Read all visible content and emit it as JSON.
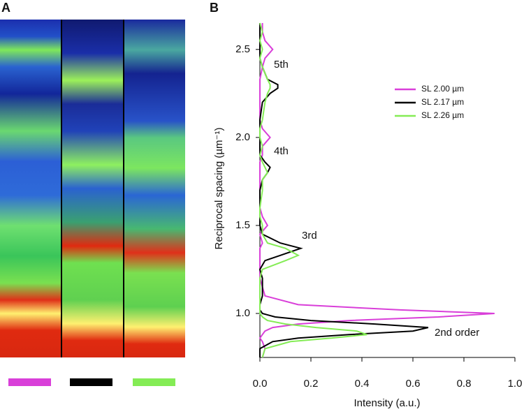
{
  "panel_labels": [
    "A",
    "B"
  ],
  "chart_data": {
    "type": "line",
    "orientation": "horizontal",
    "xlabel": "Intensity (a.u.)",
    "ylabel": "Reciprocal spacing (µm⁻¹)",
    "xlim": [
      0,
      1
    ],
    "ylim": [
      0.75,
      2.65
    ],
    "xticks": [
      {
        "value": 0,
        "label": "0.0"
      },
      {
        "value": 0.2,
        "label": "0.2"
      },
      {
        "value": 0.4,
        "label": "0.4"
      },
      {
        "value": 0.6,
        "label": "0.6"
      },
      {
        "value": 0.8,
        "label": "0.8"
      },
      {
        "value": 1,
        "label": "1.0"
      }
    ],
    "yticks": [
      {
        "value": 1,
        "label": "1.0"
      },
      {
        "value": 1.5,
        "label": "1.5"
      },
      {
        "value": 2,
        "label": "2.0"
      },
      {
        "value": 2.5,
        "label": "2.5"
      }
    ],
    "y": [
      0.75,
      0.8,
      0.84,
      0.86,
      0.88,
      0.9,
      0.92,
      0.94,
      0.96,
      0.98,
      1.0,
      1.02,
      1.05,
      1.1,
      1.2,
      1.25,
      1.3,
      1.33,
      1.37,
      1.4,
      1.45,
      1.5,
      1.55,
      1.6,
      1.7,
      1.76,
      1.8,
      1.83,
      1.86,
      1.9,
      1.95,
      2.0,
      2.05,
      2.1,
      2.2,
      2.25,
      2.28,
      2.3,
      2.33,
      2.4,
      2.45,
      2.5,
      2.55,
      2.6,
      2.65
    ],
    "series": [
      {
        "name": "SL 2.00 µm",
        "color": "#d93fd9",
        "values": [
          0.01,
          0.02,
          0.01,
          0,
          0.01,
          0.02,
          0.05,
          0.15,
          0.35,
          0.7,
          0.92,
          0.55,
          0.15,
          0.02,
          0,
          0,
          0,
          0,
          0,
          0.01,
          0,
          0.03,
          0.01,
          0,
          0,
          0,
          0,
          0,
          0,
          0.01,
          0.01,
          0.04,
          0.01,
          0,
          0,
          0,
          0,
          0,
          0,
          0.01,
          0.02,
          0.05,
          0.02,
          0.01,
          0.01
        ]
      },
      {
        "name": "SL 2.17 µm",
        "color": "#000000",
        "values": [
          0,
          0,
          0.05,
          0.15,
          0.35,
          0.6,
          0.66,
          0.45,
          0.2,
          0.06,
          0.01,
          0,
          0,
          0.01,
          0.01,
          0,
          0.02,
          0.08,
          0.16,
          0.08,
          0.01,
          0,
          0,
          0,
          0,
          0.01,
          0.03,
          0.04,
          0.02,
          0,
          0,
          0,
          0,
          0,
          0.01,
          0.04,
          0.07,
          0.07,
          0.03,
          0.01,
          0,
          0,
          0,
          0,
          0
        ]
      },
      {
        "name": "SL 2.26 µm",
        "color": "#84ec55",
        "values": [
          0.01,
          0.02,
          0.12,
          0.28,
          0.42,
          0.38,
          0.22,
          0.1,
          0.03,
          0.01,
          0,
          0,
          0,
          0,
          0,
          0.01,
          0.1,
          0.15,
          0.1,
          0.03,
          0.01,
          0.01,
          0,
          0,
          0.01,
          0.01,
          0.03,
          0.02,
          0.01,
          0,
          0.01,
          0,
          0,
          0.01,
          0.02,
          0.03,
          0.04,
          0.04,
          0.03,
          0.01,
          0,
          0.01,
          0,
          0.01,
          0
        ]
      }
    ],
    "annotations": [
      "5th",
      "4th",
      "3rd",
      "2nd order"
    ]
  }
}
